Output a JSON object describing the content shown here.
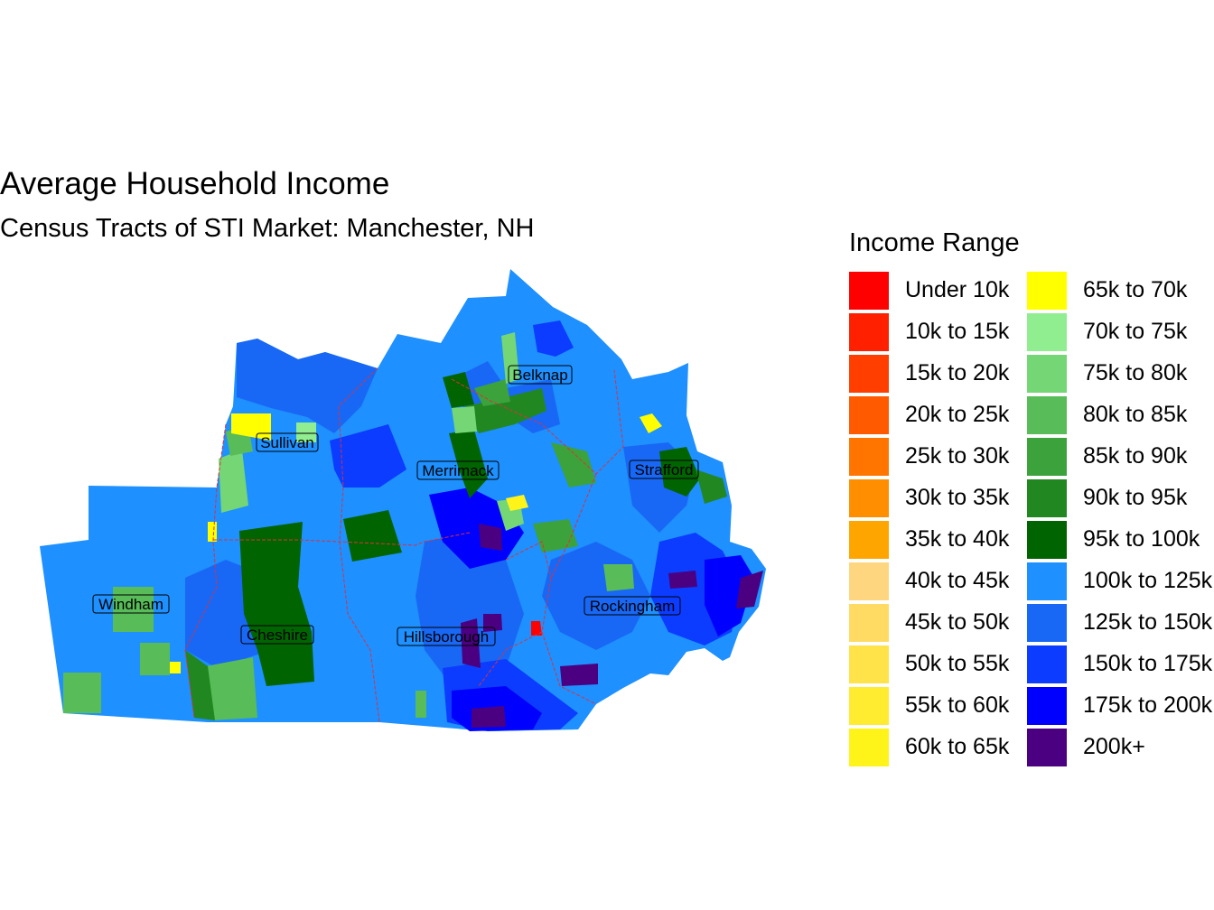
{
  "title": "Average Household Income",
  "subtitle": "Census Tracts of STI Market: Manchester, NH",
  "legend": {
    "title": "Income Range",
    "items": [
      {
        "label": "Under 10k",
        "color": "#FF0000"
      },
      {
        "label": "10k to 15k",
        "color": "#FF2000"
      },
      {
        "label": "15k to 20k",
        "color": "#FF3E00"
      },
      {
        "label": "20k to 25k",
        "color": "#FF5A00"
      },
      {
        "label": "25k to 30k",
        "color": "#FF7500"
      },
      {
        "label": "30k to 35k",
        "color": "#FF8E00"
      },
      {
        "label": "35k to 40k",
        "color": "#FFA500"
      },
      {
        "label": "40k to 45k",
        "color": "#FFD680"
      },
      {
        "label": "45k to 50k",
        "color": "#FFDB64"
      },
      {
        "label": "50k to 55k",
        "color": "#FFE348"
      },
      {
        "label": "55k to 60k",
        "color": "#FFEB30"
      },
      {
        "label": "60k to 65k",
        "color": "#FFF41A"
      },
      {
        "label": "65k to 70k",
        "color": "#FFFF00"
      },
      {
        "label": "70k to 75k",
        "color": "#90EE90"
      },
      {
        "label": "75k to 80k",
        "color": "#74D674"
      },
      {
        "label": "80k to 85k",
        "color": "#58BC58"
      },
      {
        "label": "85k to 90k",
        "color": "#3CA23C"
      },
      {
        "label": "90k to 95k",
        "color": "#218721"
      },
      {
        "label": "95k to 100k",
        "color": "#006400"
      },
      {
        "label": "100k to 125k",
        "color": "#1E90FF"
      },
      {
        "label": "125k to 150k",
        "color": "#1868F5"
      },
      {
        "label": "150k to 175k",
        "color": "#0C3CFF"
      },
      {
        "label": "175k to 200k",
        "color": "#0000FF"
      },
      {
        "label": "200k+",
        "color": "#4B0082"
      }
    ]
  },
  "counties": [
    {
      "name": "Belknap"
    },
    {
      "name": "Sullivan"
    },
    {
      "name": "Merrimack"
    },
    {
      "name": "Strafford"
    },
    {
      "name": "Windham"
    },
    {
      "name": "Rockingham"
    },
    {
      "name": "Cheshire"
    },
    {
      "name": "Hillsborough"
    }
  ]
}
